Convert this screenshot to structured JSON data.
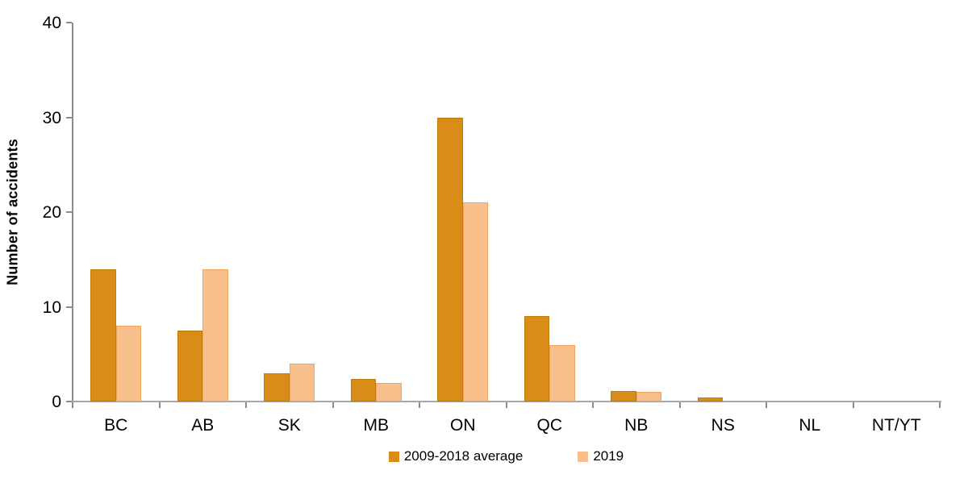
{
  "chart_data": {
    "type": "bar",
    "title": "",
    "xlabel": "",
    "ylabel": "Number of accidents",
    "ylim": [
      0,
      40
    ],
    "yticks": [
      0,
      10,
      20,
      30,
      40
    ],
    "categories": [
      "BC",
      "AB",
      "SK",
      "MB",
      "ON",
      "QC",
      "NB",
      "NS",
      "NL",
      "NT/YT"
    ],
    "series": [
      {
        "name": "2009-2018 average",
        "color": "#d98c17",
        "border_color": "#c17b0d",
        "values": [
          14,
          7.5,
          3,
          2.4,
          30,
          9,
          1.1,
          0.4,
          0,
          0
        ]
      },
      {
        "name": "2019",
        "color": "#f8be8b",
        "border_color": "#f0a55c",
        "values": [
          8,
          14,
          4,
          2,
          21,
          6,
          1,
          0,
          0,
          0
        ]
      }
    ],
    "legend_position": "bottom",
    "grid": false,
    "axis_color": "#a6a6a6",
    "tick_color": "#8c8c8c",
    "text_color": "#000000"
  }
}
